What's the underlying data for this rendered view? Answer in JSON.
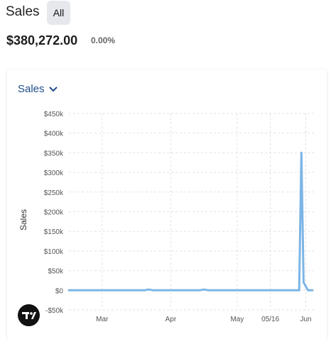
{
  "header": {
    "title": "Sales",
    "filter_label": "All"
  },
  "summary": {
    "total": "$380,272.00",
    "change": "0.00%"
  },
  "card": {
    "metric_label": "Sales"
  },
  "colors": {
    "line": "#7cb5e6",
    "accent": "#1f4e8c",
    "chip": "#e6e8ee"
  },
  "chart_data": {
    "type": "line",
    "ylabel": "Sales",
    "ylim": [
      -50000,
      450000
    ],
    "y_ticks": [
      -50000,
      0,
      50000,
      100000,
      150000,
      200000,
      250000,
      300000,
      350000,
      400000,
      450000
    ],
    "y_tick_labels": [
      "-$50k",
      "$0",
      "$50k",
      "$100k",
      "$150k",
      "$200k",
      "$250k",
      "$300k",
      "$350k",
      "$400k",
      "$450k"
    ],
    "x_tick_labels": [
      "Mar",
      "Apr",
      "May",
      "05/16",
      "Jun"
    ],
    "x_tick_dates": [
      "2024-03-01",
      "2024-04-01",
      "2024-05-01",
      "2024-05-16",
      "2024-06-01"
    ],
    "xlim": [
      "2024-02-15",
      "2024-06-05"
    ],
    "series": [
      {
        "x": [
          "2024-02-15",
          "2024-03-20",
          "2024-03-22",
          "2024-03-24",
          "2024-03-26",
          "2024-04-14",
          "2024-04-16",
          "2024-04-18",
          "2024-04-20",
          "2024-05-28",
          "2024-05-29",
          "2024-05-30",
          "2024-05-31",
          "2024-06-02",
          "2024-06-04"
        ],
        "y": [
          0,
          0,
          2000,
          0,
          0,
          0,
          2000,
          0,
          0,
          0,
          0,
          350000,
          20000,
          0,
          0
        ]
      }
    ],
    "grid": true,
    "legend": "none"
  },
  "branding": {
    "logo_name": "tradingview-logo"
  }
}
